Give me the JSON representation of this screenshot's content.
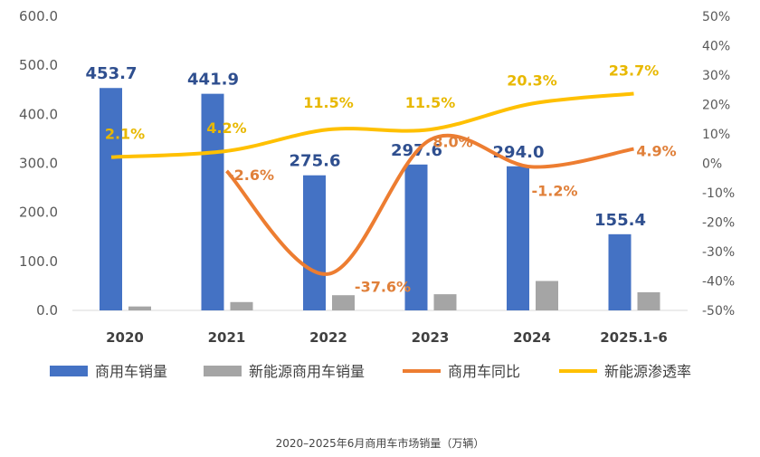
{
  "chart_data": {
    "type": "bar+line",
    "categories": [
      "2020",
      "2021",
      "2022",
      "2023",
      "2024",
      "2025.1-6"
    ],
    "series": [
      {
        "name": "商用车销量",
        "kind": "bar",
        "axis": "left",
        "color": "#4472C4",
        "values": [
          453.7,
          441.9,
          275.6,
          297.6,
          294.0,
          155.4
        ],
        "labels": [
          "453.7",
          "441.9",
          "275.6",
          "297.6",
          "294.0",
          "155.4"
        ]
      },
      {
        "name": "新能源商用车销量",
        "kind": "bar",
        "axis": "left",
        "color": "#A5A5A5",
        "values": [
          8,
          17,
          31,
          33,
          60,
          37
        ]
      },
      {
        "name": "商用车同比",
        "kind": "line",
        "axis": "right",
        "color": "#ED7D31",
        "values": [
          null,
          -2.6,
          -37.6,
          8.0,
          -1.2,
          4.9
        ],
        "labels": [
          "",
          "-2.6%",
          "-37.6%",
          "8.0%",
          "-1.2%",
          "4.9%"
        ]
      },
      {
        "name": "新能源渗透率",
        "kind": "line",
        "axis": "right",
        "color": "#FFC000",
        "values": [
          2.1,
          4.2,
          11.5,
          11.5,
          20.3,
          23.7
        ],
        "labels": [
          "2.1%",
          "4.2%",
          "11.5%",
          "11.5%",
          "20.3%",
          "23.7%"
        ]
      }
    ],
    "ylim": [
      0,
      600
    ],
    "yticks": [
      "0.0",
      "100.0",
      "200.0",
      "300.0",
      "400.0",
      "500.0",
      "600.0"
    ],
    "y2lim": [
      -50,
      50
    ],
    "y2ticks": [
      "-50%",
      "-40%",
      "-30%",
      "-20%",
      "-10%",
      "0%",
      "10%",
      "20%",
      "30%",
      "40%",
      "50%"
    ],
    "legend": "bottom",
    "grid": false,
    "caption": "2020–2025年6月商用车市场销量（万辆）"
  }
}
